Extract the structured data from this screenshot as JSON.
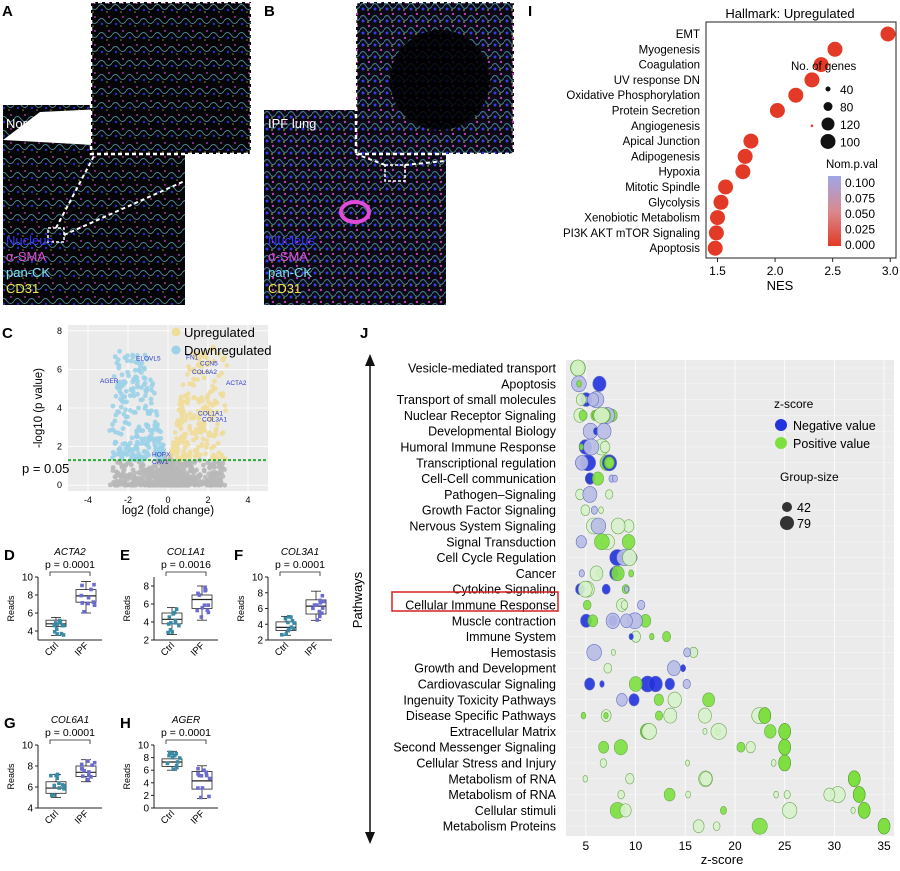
{
  "panel_letters": {
    "A": "A",
    "B": "B",
    "C": "C",
    "D": "D",
    "E": "E",
    "F": "F",
    "G": "G",
    "H": "H",
    "I": "I",
    "J": "J"
  },
  "panel_a": {
    "title": "Normal lung",
    "channels": [
      {
        "label": "Nucleus",
        "color": "#2f36ff"
      },
      {
        "label": "α-SMA",
        "color": "#e14bd9"
      },
      {
        "label": "pan-CK",
        "color": "#7fe0f0"
      },
      {
        "label": "CD31",
        "color": "#f1e24a"
      }
    ]
  },
  "panel_b": {
    "title": "IPF lung",
    "channels": [
      {
        "label": "Nucleus",
        "color": "#2f36ff"
      },
      {
        "label": "α-SMA",
        "color": "#e14bd9"
      },
      {
        "label": "pan-CK",
        "color": "#7fe0f0"
      },
      {
        "label": "CD31",
        "color": "#f1e24a"
      }
    ]
  },
  "panel_c": {
    "legend": [
      {
        "label": "Upregulated",
        "color": "#f0dd9a"
      },
      {
        "label": "Downregulated",
        "color": "#9cd1e8"
      }
    ],
    "xlabel": "log2 (fold change)",
    "ylabel": "-log10 (p value)",
    "threshold_label": "p = 0.05",
    "x_ticks": [
      "-4",
      "-2",
      "0",
      "2",
      "4"
    ],
    "y_ticks": [
      "0",
      "2",
      "4",
      "6",
      "8"
    ],
    "gene_labels": [
      {
        "text": "ELOVL5",
        "x": -1.6,
        "y": 6.45
      },
      {
        "text": "FN1",
        "x": 0.9,
        "y": 6.5
      },
      {
        "text": "CCN5",
        "x": 1.6,
        "y": 6.2
      },
      {
        "text": "COL6A2",
        "x": 1.2,
        "y": 5.75
      },
      {
        "text": "AGER",
        "x": -3.4,
        "y": 5.3
      },
      {
        "text": "ACTA2",
        "x": 2.9,
        "y": 5.2
      },
      {
        "text": "COL1A1",
        "x": 1.5,
        "y": 3.6
      },
      {
        "text": "COL3A1",
        "x": 1.7,
        "y": 3.3
      },
      {
        "text": "HOPX",
        "x": -0.8,
        "y": 1.5
      },
      {
        "text": "CAV1",
        "x": -0.8,
        "y": 1.1
      }
    ]
  },
  "box_panels": [
    {
      "letter": "D",
      "gene": "ACTA2",
      "p": "p = 0.0001",
      "ylabel": "Reads",
      "yticks": [
        "4",
        "6",
        "8",
        "10"
      ],
      "ymin": 3,
      "ymax": 10,
      "groups": [
        {
          "name": "Ctrl",
          "median": 4.8,
          "q1": 4.5,
          "q3": 5.2,
          "lo": 3.5,
          "hi": 5.5
        },
        {
          "name": "IPF",
          "median": 7.9,
          "q1": 7.2,
          "q3": 8.6,
          "lo": 6.0,
          "hi": 9.5
        }
      ]
    },
    {
      "letter": "E",
      "gene": "COL1A1",
      "p": "p = 0.0016",
      "ylabel": "Reads",
      "yticks": [
        "2",
        "4",
        "6",
        "8"
      ],
      "ymin": 2,
      "ymax": 9,
      "groups": [
        {
          "name": "Ctrl",
          "median": 4.3,
          "q1": 3.8,
          "q3": 5.0,
          "lo": 2.6,
          "hi": 5.6
        },
        {
          "name": "IPF",
          "median": 6.5,
          "q1": 5.5,
          "q3": 7.0,
          "lo": 4.2,
          "hi": 8.0
        }
      ]
    },
    {
      "letter": "F",
      "gene": "COL3A1",
      "p": "p = 0.0001",
      "ylabel": "Reads",
      "yticks": [
        "2",
        "4",
        "6",
        "8",
        "10"
      ],
      "ymin": 2,
      "ymax": 10,
      "groups": [
        {
          "name": "Ctrl",
          "median": 3.6,
          "q1": 3.2,
          "q3": 4.3,
          "lo": 2.6,
          "hi": 5.0
        },
        {
          "name": "IPF",
          "median": 6.3,
          "q1": 5.3,
          "q3": 7.1,
          "lo": 4.5,
          "hi": 8.2
        }
      ]
    },
    {
      "letter": "G",
      "gene": "COL6A1",
      "p": "p = 0.0001",
      "ylabel": "Reads",
      "yticks": [
        "4",
        "6",
        "8",
        "10"
      ],
      "ymin": 4,
      "ymax": 10,
      "groups": [
        {
          "name": "Ctrl",
          "median": 5.9,
          "q1": 5.4,
          "q3": 6.5,
          "lo": 5.0,
          "hi": 7.2
        },
        {
          "name": "IPF",
          "median": 7.4,
          "q1": 7.0,
          "q3": 8.0,
          "lo": 6.5,
          "hi": 8.6
        }
      ]
    },
    {
      "letter": "H",
      "gene": "AGER",
      "p": "p = 0.0001",
      "ylabel": "Reads",
      "yticks": [
        "0",
        "2",
        "4",
        "6",
        "8",
        "10"
      ],
      "ymin": 0,
      "ymax": 10,
      "groups": [
        {
          "name": "Ctrl",
          "median": 7.3,
          "q1": 6.6,
          "q3": 7.8,
          "lo": 6.0,
          "hi": 9.0
        },
        {
          "name": "IPF",
          "median": 4.3,
          "q1": 3.0,
          "q3": 5.8,
          "lo": 1.5,
          "hi": 6.7
        }
      ]
    }
  ],
  "chart_data": [
    {
      "type": "scatter",
      "title": "Hallmark: Upregulated",
      "xlabel": "NES",
      "xlim": [
        1.4,
        3.0
      ],
      "x_ticks": [
        "1.5",
        "2.0",
        "2.5",
        "3.0"
      ],
      "categories": [
        "EMT",
        "Myogenesis",
        "Coagulation",
        "UV response DN",
        "Oxidative Phosphorylation",
        "Protein Secretion",
        "Angiogenesis",
        "Apical Junction",
        "Adipogenesis",
        "Hypoxia",
        "Mitotic Spindle",
        "Glycolysis",
        "Xenobiotic Metabolism",
        "PI3K AKT mTOR Signaling",
        "Apoptosis"
      ],
      "values": [
        2.98,
        2.52,
        2.4,
        2.32,
        2.18,
        2.02,
        2.32,
        1.79,
        1.74,
        1.72,
        1.57,
        1.53,
        1.5,
        1.49,
        1.48
      ],
      "size_legend_title": "No. of genes",
      "size_legend": [
        "40",
        "80",
        "120",
        "100"
      ],
      "color_legend_title": "Nom.p.val",
      "color_legend_ticks": [
        "0.100",
        "0.075",
        "0.050",
        "0.025",
        "0.000"
      ]
    },
    {
      "type": "scatter",
      "xlabel": "z-score",
      "ylabel": "Pathways",
      "xlim": [
        3,
        36
      ],
      "x_ticks": [
        "5",
        "10",
        "15",
        "20",
        "25",
        "30",
        "35"
      ],
      "legend_title": "z-score",
      "legend": [
        {
          "label": "Negative value",
          "color": "#2233dd"
        },
        {
          "label": "Positive value",
          "color": "#7de040"
        }
      ],
      "size_title": "Group-size",
      "size_legend": [
        "42",
        "79"
      ],
      "highlighted": "Cellular Immune Response",
      "categories": [
        "Vesicle-mediated transport",
        "Apoptosis",
        "Transport of small molecules",
        "Nuclear Receptor Signaling",
        "Developmental Biology",
        "Humoral Immune Response",
        "Transcriptional regulation",
        "Cell-Cell communication",
        "Pathogen–Signaling",
        "Growth Factor Signaling",
        "Nervous System Signaling",
        "Signal Transduction",
        "Cell Cycle Regulation",
        "Cancer",
        "Cytokine Signaling",
        "Cellular Immune Response",
        "Muscle contraction",
        "Immune System",
        "Hemostasis",
        "Growth and Development",
        "Cardiovascular Signaling",
        "Ingenuity Toxicity Pathways",
        "Disease Specific Pathways",
        "Extracellular Matrix",
        "Second  Messenger Signaling",
        "Cellular Stress and Injury",
        "Metabolism of RNA",
        "Metabolism of RNA",
        "Cellular stimuli",
        "Metabolism Proteins"
      ],
      "max_z": [
        4.5,
        7.0,
        6.5,
        8.0,
        7.0,
        7.5,
        7.5,
        8.0,
        9.0,
        8.5,
        9.5,
        10.0,
        10.5,
        11.0,
        11.5,
        12.0,
        11.0,
        15.5,
        16.0,
        16.5,
        16.0,
        17.5,
        23.0,
        25.0,
        25.0,
        25.0,
        32.0,
        32.5,
        33.0,
        35.0
      ]
    }
  ]
}
